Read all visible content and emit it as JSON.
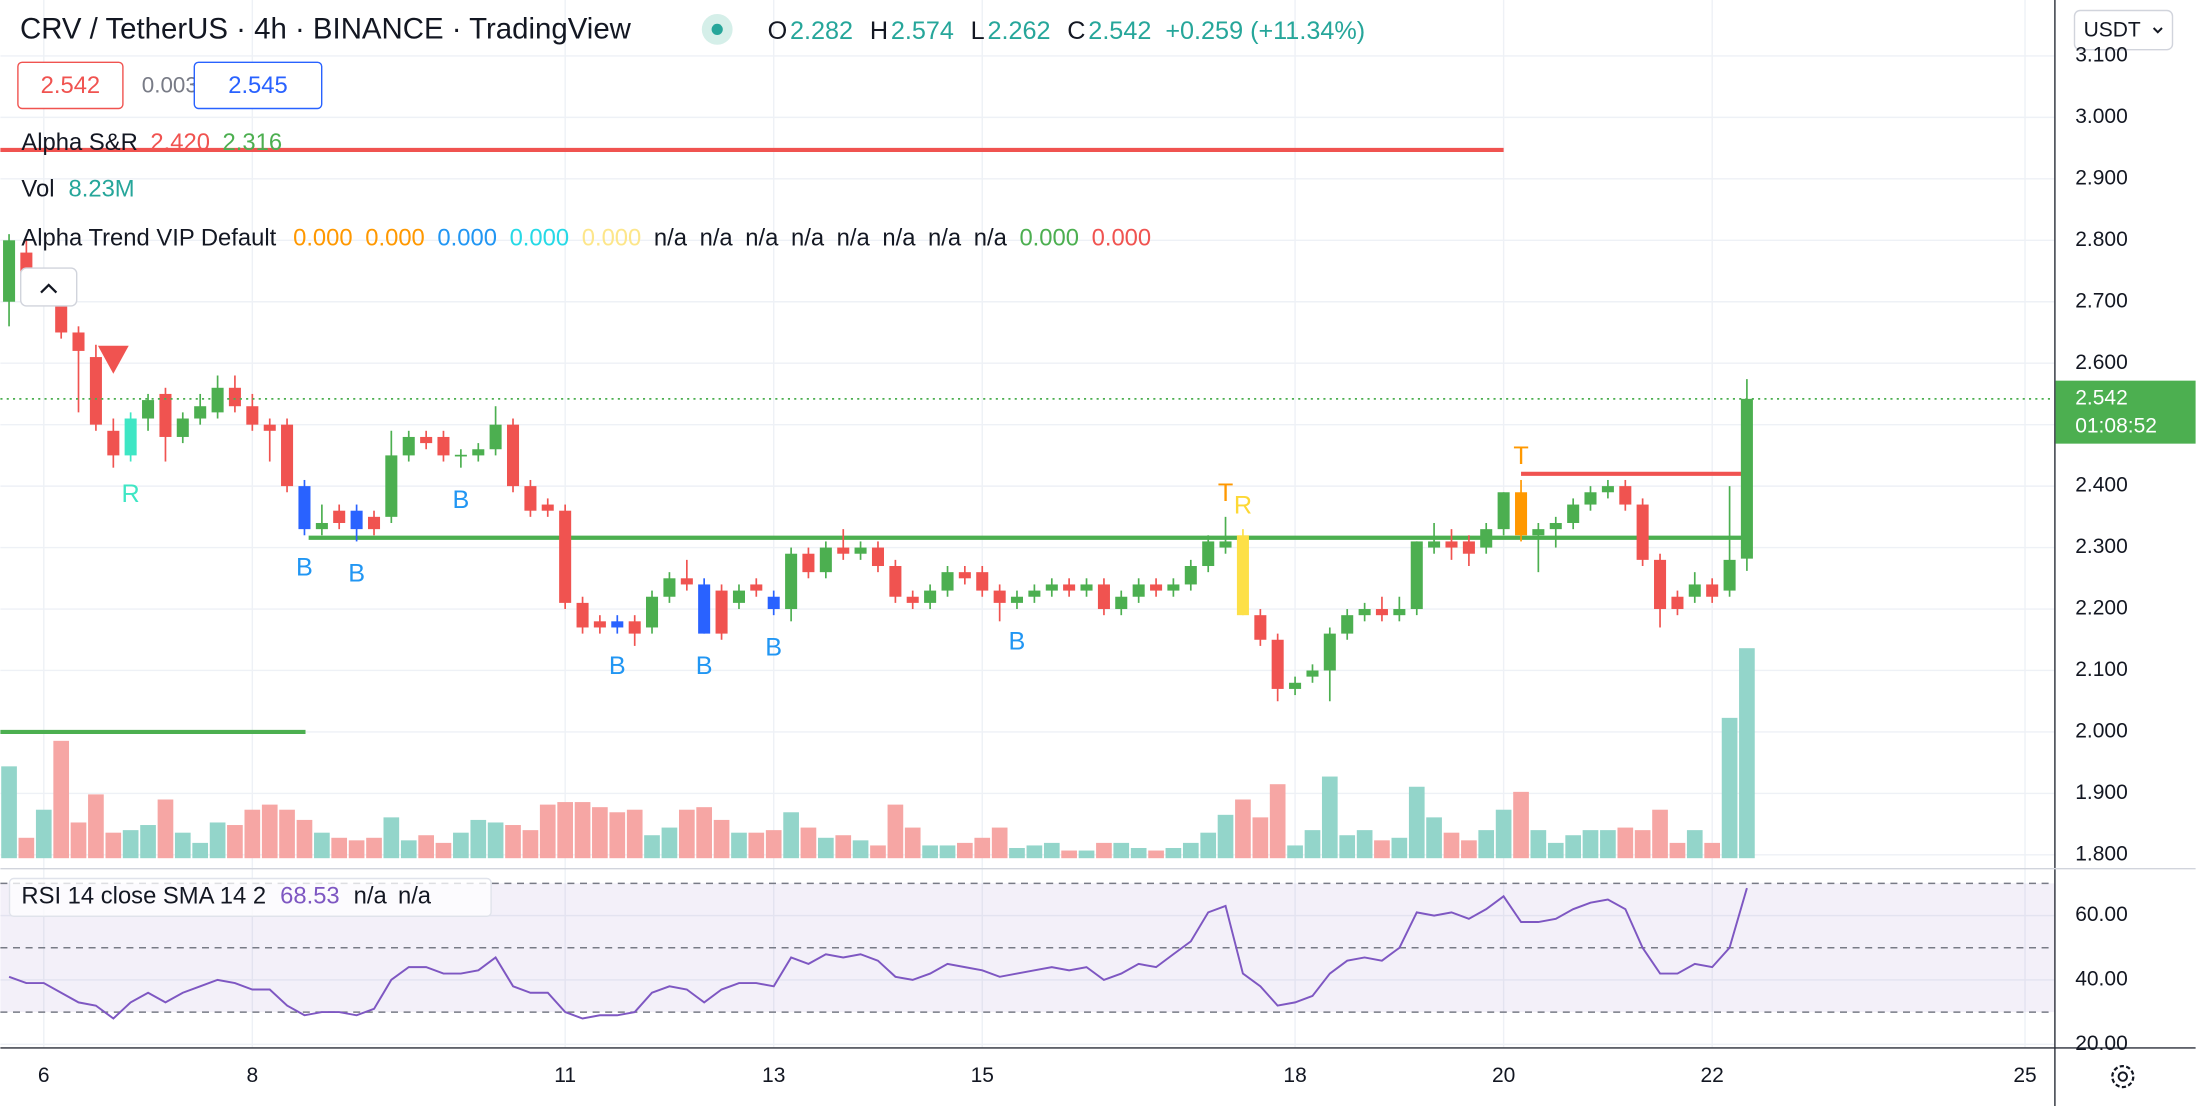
{
  "header": {
    "title": "CRV / TetherUS · 4h · BINANCE · TradingView",
    "ohlc": [
      {
        "label": "O",
        "value": 2.282
      },
      {
        "label": "H",
        "value": 2.574
      },
      {
        "label": "L",
        "value": 2.262
      },
      {
        "label": "C",
        "value": 2.542
      }
    ],
    "change": "+0.259 (+11.34%)"
  },
  "quote": {
    "sell": 2.542,
    "spread": 0.003,
    "buy": 2.545
  },
  "currency": "USDT",
  "countdown": "01:08:52",
  "alpha_trend": {
    "name": "Alpha Trend VIP Default",
    "values": [
      {
        "text": "0.000",
        "color": "#ff9800"
      },
      {
        "text": "0.000",
        "color": "#ff9800"
      },
      {
        "text": "0.000",
        "color": "#2196f3"
      },
      {
        "text": "0.000",
        "color": "#26d9e6"
      },
      {
        "text": "0.000",
        "color": "#fde68a"
      },
      {
        "text": "n/a",
        "color": "#131722"
      },
      {
        "text": "n/a",
        "color": "#131722"
      },
      {
        "text": "n/a",
        "color": "#131722"
      },
      {
        "text": "n/a",
        "color": "#131722"
      },
      {
        "text": "n/a",
        "color": "#131722"
      },
      {
        "text": "n/a",
        "color": "#131722"
      },
      {
        "text": "n/a",
        "color": "#131722"
      },
      {
        "text": "n/a",
        "color": "#131722"
      },
      {
        "text": "0.000",
        "color": "#4caf50"
      },
      {
        "text": "0.000",
        "color": "#f05350"
      }
    ]
  },
  "chart_data": {
    "type": "candlestick",
    "up_color": "#4caf50",
    "down_color": "#f05350",
    "grid": true,
    "grid_color": "#eef1f6",
    "xlim": [
      5.584,
      25.28
    ],
    "xticks": [
      6,
      8,
      11,
      13,
      15,
      18,
      20,
      22,
      25
    ],
    "ylim": [
      1.79,
      3.191
    ],
    "yticks": [
      {
        "value": 1.8,
        "label": "1.800"
      },
      {
        "value": 1.9,
        "label": "1.900"
      },
      {
        "value": 2.0,
        "label": "2.000"
      },
      {
        "value": 2.1,
        "label": "2.100"
      },
      {
        "value": 2.2,
        "label": "2.200"
      },
      {
        "value": 2.3,
        "label": "2.300"
      },
      {
        "value": 2.4,
        "label": "2.400"
      },
      {
        "value": 2.5,
        "label": "2.500"
      },
      {
        "value": 2.6,
        "label": "2.600"
      },
      {
        "value": 2.7,
        "label": "2.700"
      },
      {
        "value": 2.8,
        "label": "2.800"
      },
      {
        "value": 2.9,
        "label": "2.900"
      },
      {
        "value": 3.0,
        "label": "3.000"
      },
      {
        "value": 3.1,
        "label": "3.100"
      }
    ],
    "x": [
      5.667,
      5.833,
      6,
      6.167,
      6.333,
      6.5,
      6.667,
      6.833,
      7,
      7.167,
      7.333,
      7.5,
      7.667,
      7.833,
      8,
      8.167,
      8.333,
      8.5,
      8.667,
      8.833,
      9,
      9.167,
      9.333,
      9.5,
      9.667,
      9.833,
      10,
      10.167,
      10.333,
      10.5,
      10.667,
      10.833,
      11,
      11.167,
      11.333,
      11.5,
      11.667,
      11.833,
      12,
      12.167,
      12.333,
      12.5,
      12.667,
      12.833,
      13,
      13.167,
      13.333,
      13.5,
      13.667,
      13.833,
      14,
      14.167,
      14.333,
      14.5,
      14.667,
      14.833,
      15,
      15.167,
      15.333,
      15.5,
      15.667,
      15.833,
      16,
      16.167,
      16.333,
      16.5,
      16.667,
      16.833,
      17,
      17.167,
      17.333,
      17.5,
      17.667,
      17.833,
      18,
      18.167,
      18.333,
      18.5,
      18.667,
      18.833,
      19,
      19.167,
      19.333,
      19.5,
      19.667,
      19.833,
      20,
      20.167,
      20.333,
      20.5,
      20.667,
      20.833,
      21,
      21.167,
      21.333,
      21.5,
      21.667,
      21.833,
      22,
      22.167,
      22.333
    ],
    "open": [
      2.7,
      2.78,
      2.72,
      2.71,
      2.65,
      2.61,
      2.49,
      2.45,
      2.51,
      2.55,
      2.48,
      2.51,
      2.52,
      2.56,
      2.53,
      2.5,
      2.5,
      2.4,
      2.33,
      2.36,
      2.36,
      2.35,
      2.35,
      2.45,
      2.48,
      2.48,
      2.45,
      2.45,
      2.46,
      2.5,
      2.4,
      2.37,
      2.36,
      2.21,
      2.18,
      2.18,
      2.18,
      2.17,
      2.22,
      2.25,
      2.24,
      2.23,
      2.21,
      2.24,
      2.22,
      2.2,
      2.29,
      2.26,
      2.3,
      2.29,
      2.3,
      2.27,
      2.22,
      2.21,
      2.23,
      2.26,
      2.26,
      2.23,
      2.21,
      2.22,
      2.23,
      2.24,
      2.23,
      2.24,
      2.2,
      2.22,
      2.24,
      2.23,
      2.24,
      2.27,
      2.3,
      2.32,
      2.19,
      2.15,
      2.07,
      2.09,
      2.1,
      2.16,
      2.19,
      2.2,
      2.19,
      2.2,
      2.3,
      2.31,
      2.31,
      2.3,
      2.33,
      2.39,
      2.32,
      2.33,
      2.34,
      2.37,
      2.39,
      2.4,
      2.37,
      2.28,
      2.22,
      2.22,
      2.24,
      2.23,
      2.282
    ],
    "high": [
      2.81,
      2.8,
      2.75,
      2.73,
      2.66,
      2.63,
      2.51,
      2.52,
      2.55,
      2.56,
      2.52,
      2.55,
      2.58,
      2.58,
      2.55,
      2.51,
      2.51,
      2.41,
      2.37,
      2.37,
      2.37,
      2.36,
      2.49,
      2.49,
      2.49,
      2.49,
      2.46,
      2.47,
      2.53,
      2.51,
      2.41,
      2.38,
      2.37,
      2.22,
      2.19,
      2.19,
      2.19,
      2.23,
      2.26,
      2.28,
      2.25,
      2.24,
      2.24,
      2.25,
      2.23,
      2.3,
      2.3,
      2.31,
      2.33,
      2.31,
      2.31,
      2.28,
      2.23,
      2.24,
      2.27,
      2.27,
      2.27,
      2.24,
      2.23,
      2.24,
      2.25,
      2.25,
      2.25,
      2.25,
      2.23,
      2.25,
      2.25,
      2.25,
      2.28,
      2.32,
      2.35,
      2.33,
      2.2,
      2.16,
      2.09,
      2.11,
      2.17,
      2.2,
      2.21,
      2.22,
      2.22,
      2.31,
      2.34,
      2.33,
      2.32,
      2.34,
      2.39,
      2.41,
      2.34,
      2.35,
      2.38,
      2.4,
      2.41,
      2.41,
      2.38,
      2.29,
      2.23,
      2.26,
      2.25,
      2.4,
      2.574
    ],
    "low": [
      2.66,
      2.7,
      2.7,
      2.64,
      2.52,
      2.49,
      2.43,
      2.44,
      2.49,
      2.44,
      2.47,
      2.5,
      2.51,
      2.52,
      2.49,
      2.44,
      2.39,
      2.32,
      2.32,
      2.33,
      2.31,
      2.32,
      2.34,
      2.44,
      2.46,
      2.44,
      2.43,
      2.44,
      2.45,
      2.39,
      2.35,
      2.35,
      2.2,
      2.16,
      2.16,
      2.16,
      2.14,
      2.16,
      2.21,
      2.23,
      2.16,
      2.15,
      2.2,
      2.22,
      2.19,
      2.18,
      2.25,
      2.25,
      2.28,
      2.28,
      2.26,
      2.21,
      2.2,
      2.2,
      2.22,
      2.24,
      2.22,
      2.18,
      2.2,
      2.21,
      2.22,
      2.22,
      2.22,
      2.19,
      2.19,
      2.21,
      2.22,
      2.22,
      2.23,
      2.26,
      2.29,
      2.19,
      2.14,
      2.05,
      2.06,
      2.08,
      2.05,
      2.15,
      2.18,
      2.18,
      2.18,
      2.19,
      2.29,
      2.28,
      2.27,
      2.29,
      2.32,
      2.31,
      2.26,
      2.3,
      2.33,
      2.36,
      2.38,
      2.36,
      2.27,
      2.17,
      2.19,
      2.21,
      2.21,
      2.22,
      2.262
    ],
    "close": [
      2.8,
      2.72,
      2.73,
      2.65,
      2.62,
      2.5,
      2.45,
      2.51,
      2.54,
      2.48,
      2.51,
      2.53,
      2.56,
      2.53,
      2.5,
      2.49,
      2.4,
      2.33,
      2.34,
      2.34,
      2.33,
      2.33,
      2.45,
      2.48,
      2.47,
      2.45,
      2.451,
      2.46,
      2.5,
      2.4,
      2.36,
      2.36,
      2.21,
      2.17,
      2.17,
      2.17,
      2.16,
      2.22,
      2.25,
      2.24,
      2.16,
      2.16,
      2.23,
      2.23,
      2.2,
      2.29,
      2.26,
      2.3,
      2.29,
      2.3,
      2.27,
      2.22,
      2.21,
      2.23,
      2.26,
      2.25,
      2.23,
      2.21,
      2.22,
      2.23,
      2.24,
      2.23,
      2.24,
      2.2,
      2.22,
      2.24,
      2.23,
      2.24,
      2.27,
      2.31,
      2.31,
      2.19,
      2.15,
      2.07,
      2.08,
      2.1,
      2.16,
      2.19,
      2.2,
      2.19,
      2.2,
      2.31,
      2.31,
      2.3,
      2.29,
      2.33,
      2.39,
      2.32,
      2.33,
      2.34,
      2.37,
      2.39,
      2.4,
      2.37,
      2.28,
      2.2,
      2.2,
      2.24,
      2.22,
      2.28,
      2.542
    ],
    "highlights": [
      {
        "index": 7,
        "color": "#3ee6c4"
      },
      {
        "index": 17,
        "color": "#2962ff"
      },
      {
        "index": 20,
        "color": "#2962ff"
      },
      {
        "index": 35,
        "color": "#2962ff"
      },
      {
        "index": 40,
        "color": "#2962ff"
      },
      {
        "index": 44,
        "color": "#2962ff"
      },
      {
        "index": 71,
        "color": "#fde047"
      },
      {
        "index": 87,
        "color": "#ff9800"
      }
    ],
    "signals": [
      {
        "index": 6,
        "shape": "triangle-down",
        "color": "#f05350",
        "position": "above"
      },
      {
        "index": 7,
        "text": "R",
        "color": "#3ee6c4",
        "position": "below"
      },
      {
        "index": 17,
        "text": "B",
        "color": "#2196f3",
        "position": "below"
      },
      {
        "index": 20,
        "text": "B",
        "color": "#2196f3",
        "position": "below"
      },
      {
        "index": 26,
        "text": "B",
        "color": "#2196f3",
        "position": "below"
      },
      {
        "index": 35,
        "text": "B",
        "color": "#2196f3",
        "position": "below"
      },
      {
        "index": 40,
        "text": "B",
        "color": "#2196f3",
        "position": "below"
      },
      {
        "index": 44,
        "text": "B",
        "color": "#2196f3",
        "position": "below"
      },
      {
        "index": 58,
        "text": "B",
        "color": "#2196f3",
        "position": "below"
      },
      {
        "index": 70,
        "text": "T",
        "color": "#ff9800",
        "position": "above"
      },
      {
        "index": 71,
        "text": "R",
        "color": "#fdd835",
        "position": "above"
      },
      {
        "index": 87,
        "text": "T",
        "color": "#ff9800",
        "position": "above"
      }
    ],
    "sr": {
      "name": "Alpha S&R",
      "lines": [
        {
          "value": 2.42,
          "label": "2.420",
          "color": "#f05350",
          "x": [
            20.167,
            22.29
          ]
        },
        {
          "value": 2.316,
          "label": "2.316",
          "color": "#4caf50",
          "x": [
            8.54,
            22.29
          ]
        },
        {
          "value": 2.947,
          "color": "#f05350",
          "x": [
            5.584,
            20.0
          ]
        },
        {
          "value": 2.0,
          "color": "#4caf50",
          "x": [
            5.584,
            8.51
          ]
        }
      ]
    },
    "volume": {
      "name": "Vol",
      "value_label": "8.23M",
      "up_color": "#93d5ca",
      "down_color": "#f6a6a4",
      "values": [
        3.6,
        0.8,
        1.9,
        4.6,
        1.4,
        2.5,
        1.0,
        1.1,
        1.3,
        2.3,
        1.0,
        0.6,
        1.4,
        1.3,
        1.9,
        2.1,
        1.9,
        1.5,
        1.0,
        0.8,
        0.7,
        0.8,
        1.6,
        0.7,
        0.9,
        0.6,
        1.0,
        1.5,
        1.4,
        1.3,
        1.1,
        2.1,
        2.2,
        2.2,
        2.0,
        1.8,
        1.9,
        0.9,
        1.2,
        1.9,
        2.0,
        1.5,
        1.0,
        1.0,
        1.1,
        1.8,
        1.2,
        0.8,
        0.9,
        0.7,
        0.5,
        2.1,
        1.2,
        0.5,
        0.5,
        0.6,
        0.8,
        1.2,
        0.4,
        0.5,
        0.6,
        0.3,
        0.3,
        0.6,
        0.6,
        0.4,
        0.3,
        0.4,
        0.6,
        1.0,
        1.7,
        2.3,
        1.6,
        2.9,
        0.5,
        1.1,
        3.2,
        0.9,
        1.1,
        0.7,
        0.8,
        2.8,
        1.6,
        1.0,
        0.7,
        1.1,
        1.9,
        2.6,
        1.1,
        0.6,
        0.9,
        1.1,
        1.1,
        1.2,
        1.1,
        1.9,
        0.6,
        1.1,
        0.6,
        5.5,
        8.23
      ]
    },
    "rsi": {
      "name": "RSI 14 close SMA 14 2",
      "color": "#7e57c2",
      "extra": [
        "n/a",
        "n/a"
      ],
      "ylim": [
        19.1,
        72.6
      ],
      "yticks": [
        {
          "value": 20,
          "label": "20.00"
        },
        {
          "value": 40,
          "label": "40.00"
        },
        {
          "value": 60,
          "label": "60.00"
        }
      ],
      "levels": [
        70,
        50,
        30
      ],
      "values": [
        41,
        39,
        39,
        36,
        33,
        32,
        28,
        33,
        36,
        33,
        36,
        38,
        40,
        39,
        37,
        37,
        32,
        29,
        30,
        30,
        29,
        31,
        40,
        44,
        44,
        42,
        42,
        43,
        47,
        38,
        36,
        36,
        30,
        28,
        29,
        29,
        30,
        36,
        38,
        37,
        33,
        37,
        39,
        39,
        38,
        47,
        45,
        48,
        47,
        48,
        46,
        41,
        40,
        42,
        45,
        44,
        43,
        41,
        42,
        43,
        44,
        43,
        44,
        40,
        42,
        45,
        44,
        48,
        52,
        61,
        63,
        42,
        38,
        32,
        33,
        35,
        42,
        46,
        47,
        46,
        50,
        61,
        60,
        61,
        59,
        62,
        66,
        58,
        58,
        59,
        62,
        64,
        65,
        62,
        50,
        42,
        42,
        45,
        44,
        50,
        68.53
      ]
    }
  }
}
